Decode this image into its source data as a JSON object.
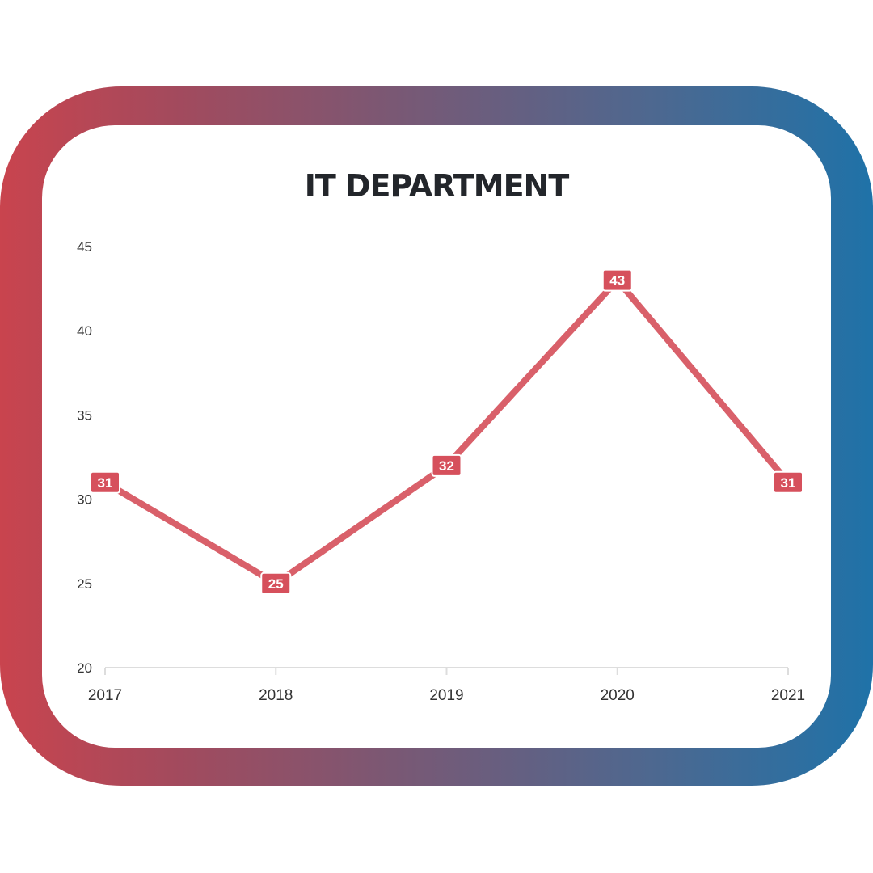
{
  "chart_data": {
    "type": "line",
    "title": "IT DEPARTMENT",
    "categories": [
      "2017",
      "2018",
      "2019",
      "2020",
      "2021"
    ],
    "series": [
      {
        "values": [
          31,
          25,
          32,
          43,
          31
        ]
      }
    ],
    "yticks": [
      "20",
      "25",
      "30",
      "35",
      "40",
      "45"
    ],
    "ylim": [
      20,
      45
    ],
    "xlabel": "",
    "ylabel": "",
    "grid": false,
    "data_labels": true
  },
  "colors": {
    "line": "#d9606a",
    "label_bg": "#d6505c",
    "frame_left": "#c9444e",
    "frame_right": "#1f72a8",
    "axis": "#dddddd"
  }
}
